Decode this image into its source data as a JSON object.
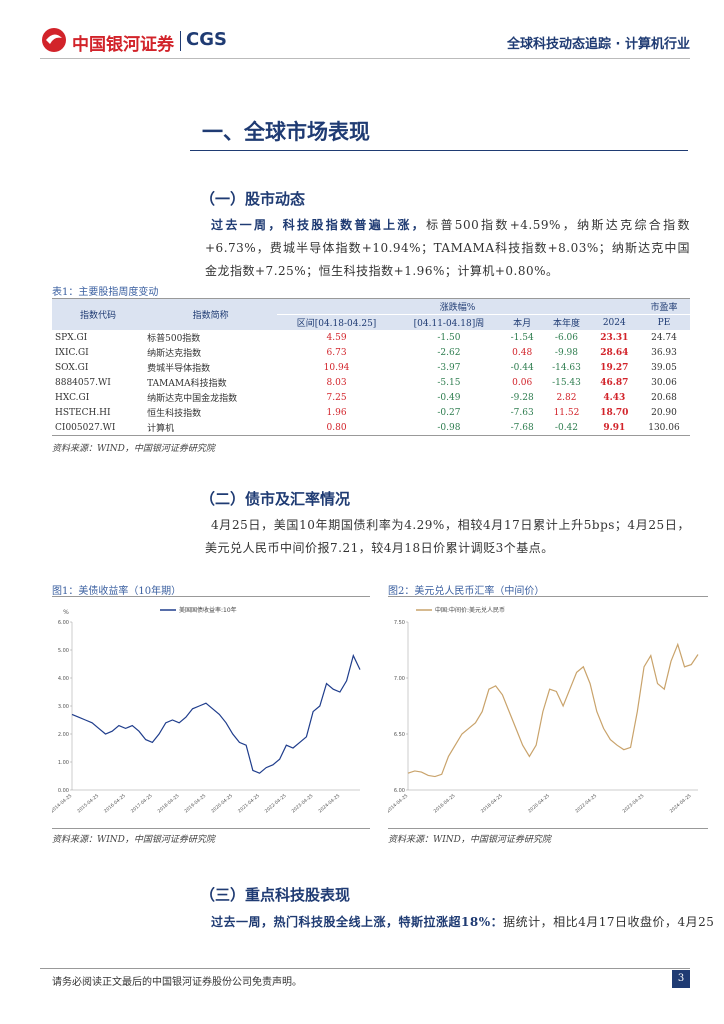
{
  "header": {
    "brand": "中国银河证券",
    "brand_en": "CGS",
    "right": "全球科技动态追踪 · 计算机行业"
  },
  "section": {
    "title": "一、全球市场表现"
  },
  "stocks": {
    "heading": "（一）股市动态",
    "lead": "过去一周，科技股指数普遍上涨，",
    "text": "标普500指数+4.59%，纳斯达克综合指数+6.73%，费城半导体指数+10.94%；TAMAMA科技指数+8.03%；纳斯达克中国金龙指数+7.25%；恒生科技指数+1.96%；计算机+0.80%。"
  },
  "table": {
    "caption": "表1：主要股指周度变动",
    "header": [
      "指数代码",
      "指数简称",
      "涨跌幅%",
      "市盈率"
    ],
    "subheader": [
      "区间[04.18-04.25]",
      "[04.11-04.18]周",
      "本月",
      "本年度",
      "2024",
      "PE"
    ],
    "rows": [
      [
        "SPX.GI",
        "标普500指数",
        "4.59",
        "-1.50",
        "-1.54",
        "-6.06",
        "23.31",
        "24.74"
      ],
      [
        "IXIC.GI",
        "纳斯达克指数",
        "6.73",
        "-2.62",
        "0.48",
        "-9.98",
        "28.64",
        "36.93"
      ],
      [
        "SOX.GI",
        "费城半导体指数",
        "10.94",
        "-3.97",
        "-0.44",
        "-14.63",
        "19.27",
        "39.05"
      ],
      [
        "8884057.WI",
        "TAMAMA科技指数",
        "8.03",
        "-5.15",
        "0.06",
        "-15.43",
        "46.87",
        "30.06"
      ],
      [
        "HXC.GI",
        "纳斯达克中国金龙指数",
        "7.25",
        "-0.49",
        "-9.28",
        "2.82",
        "4.43",
        "20.68"
      ],
      [
        "HSTECH.HI",
        "恒生科技指数",
        "1.96",
        "-0.27",
        "-7.63",
        "11.52",
        "18.70",
        "20.90"
      ],
      [
        "CI005027.WI",
        "计算机",
        "0.80",
        "-0.98",
        "-7.68",
        "-0.42",
        "9.91",
        "130.06"
      ]
    ],
    "source": "资料来源：WIND，中国银河证券研究院"
  },
  "bonds": {
    "heading": "（二）债市及汇率情况",
    "text": "4月25日，美国10年期国债利率为4.29%，相较4月17日累计上升5bps；4月25日，美元兑人民币中间价报7.21，较4月18日价累计调贬3个基点。"
  },
  "figures": [
    {
      "caption": "图1：美债收益率（10年期）",
      "source": "资料来源：WIND，中国银河证券研究院"
    },
    {
      "caption": "图2：美元兑人民币汇率（中间价）",
      "source": "资料来源：WIND，中国银河证券研究院"
    }
  ],
  "chart_data": [
    {
      "type": "line",
      "y_label": "%",
      "series": [
        {
          "name": "美国国债收益率:10年",
          "color": "#1f3d8c",
          "values": [
            2.7,
            2.6,
            2.5,
            2.4,
            2.2,
            2.0,
            2.1,
            2.3,
            2.2,
            2.3,
            2.1,
            1.8,
            1.7,
            2.0,
            2.4,
            2.5,
            2.4,
            2.6,
            2.9,
            3.0,
            3.1,
            2.9,
            2.7,
            2.4,
            2.0,
            1.7,
            1.6,
            0.7,
            0.6,
            0.8,
            0.9,
            1.1,
            1.6,
            1.5,
            1.7,
            1.9,
            2.8,
            3.0,
            3.8,
            3.6,
            3.5,
            3.9,
            4.8,
            4.3
          ]
        }
      ],
      "categories": [
        "2014-04-25",
        null,
        null,
        null,
        "2015-04-25",
        null,
        null,
        null,
        "2016-04-25",
        null,
        null,
        null,
        "2017-04-25",
        null,
        null,
        null,
        "2018-04-25",
        null,
        null,
        null,
        "2019-04-25",
        null,
        null,
        null,
        "2020-04-25",
        null,
        null,
        null,
        "2021-04-25",
        null,
        null,
        null,
        "2022-04-25",
        null,
        null,
        null,
        "2023-04-25",
        null,
        null,
        null,
        "2024-04-25",
        null,
        null,
        null
      ],
      "ylim": [
        0,
        6
      ],
      "yticks": [
        {
          "value": 0,
          "label": "0.00"
        },
        {
          "value": 1,
          "label": "1.00"
        },
        {
          "value": 2,
          "label": "2.00"
        },
        {
          "value": 3,
          "label": "3.00"
        },
        {
          "value": 4,
          "label": "4.00"
        },
        {
          "value": 5,
          "label": "5.00"
        },
        {
          "value": 6,
          "label": "6.00"
        }
      ]
    },
    {
      "type": "line",
      "series": [
        {
          "name": "中国:中间价:美元兑人民币",
          "color": "#c9a36b",
          "values": [
            6.15,
            6.17,
            6.16,
            6.13,
            6.12,
            6.14,
            6.3,
            6.4,
            6.5,
            6.55,
            6.6,
            6.7,
            6.9,
            6.93,
            6.85,
            6.7,
            6.55,
            6.4,
            6.3,
            6.4,
            6.7,
            6.9,
            6.88,
            6.75,
            6.9,
            7.05,
            7.1,
            6.95,
            6.7,
            6.55,
            6.45,
            6.4,
            6.36,
            6.38,
            6.7,
            7.1,
            7.2,
            6.95,
            6.9,
            7.15,
            7.3,
            7.1,
            7.12,
            7.21
          ]
        }
      ],
      "categories": [
        "2014-04-25",
        null,
        null,
        null,
        null,
        null,
        null,
        "2016-04-25",
        null,
        null,
        null,
        null,
        null,
        null,
        "2018-04-25",
        null,
        null,
        null,
        null,
        null,
        null,
        "2020-04-25",
        null,
        null,
        null,
        null,
        null,
        null,
        "2022-04-25",
        null,
        null,
        null,
        null,
        null,
        null,
        "2023-04-25",
        null,
        null,
        null,
        null,
        null,
        null,
        "2024-04-25",
        null
      ],
      "ylim": [
        6.0,
        7.5
      ],
      "yticks": [
        {
          "value": 6,
          "label": "6.00"
        },
        {
          "value": 6.5,
          "label": "6.50"
        },
        {
          "value": 7,
          "label": "7.00"
        },
        {
          "value": 7.5,
          "label": "7.50"
        }
      ]
    }
  ],
  "tech": {
    "heading": "（三）重点科技股表现",
    "lead": "过去一周，热门科技股全线上涨，特斯拉涨超18%：",
    "text": "据统计，相比4月17日收盘价，4月25"
  },
  "footer": {
    "disclaimer": "请务必阅读正文最后的中国银河证券股份公司免责声明。",
    "page": "3"
  }
}
